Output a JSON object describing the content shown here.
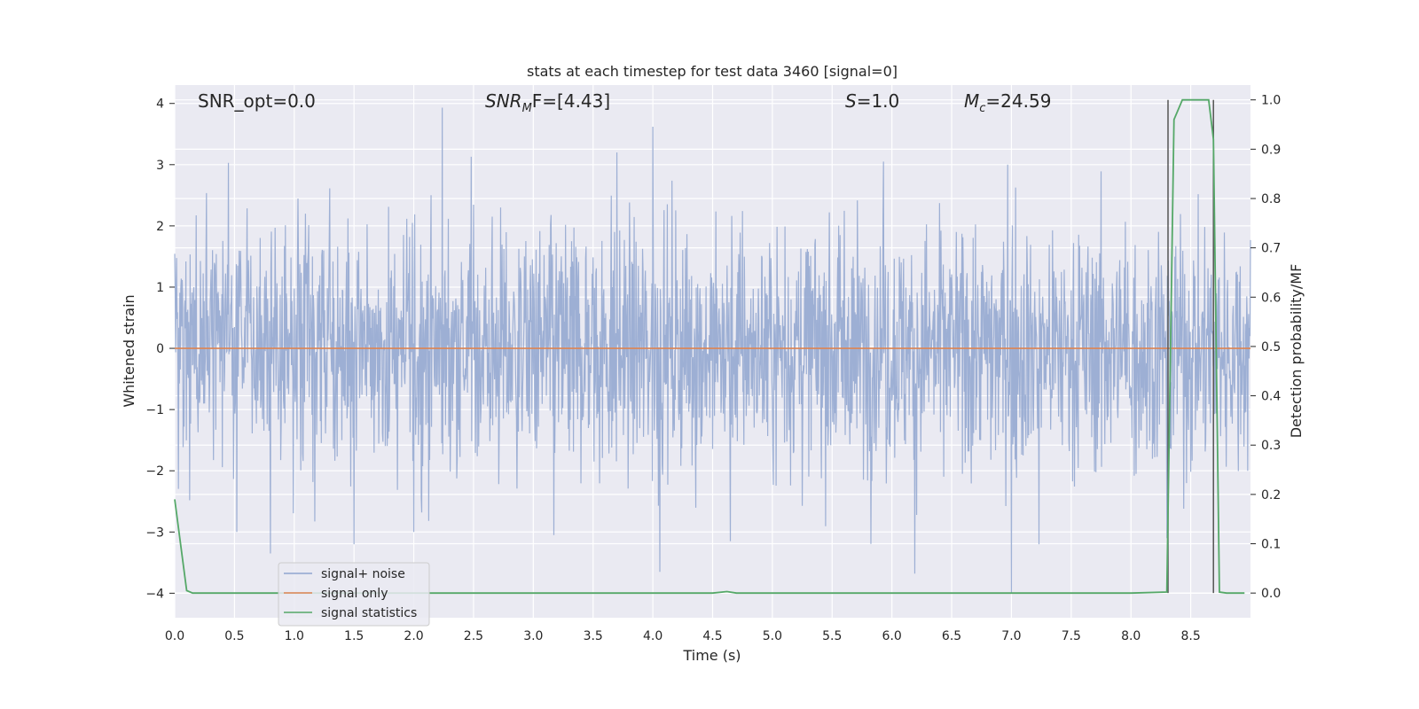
{
  "chart_data": {
    "type": "line",
    "title": "stats at each timestep for test data 3460 [signal=0]",
    "xlabel": "Time (s)",
    "ylabel": "Whitened strain",
    "y2label": "Detection probability/MF",
    "xlim": [
      0,
      9.0
    ],
    "ylim": [
      -4.4,
      4.3
    ],
    "y2lim": [
      -0.05,
      1.03
    ],
    "xticks": [
      "0.0",
      "0.5",
      "1.0",
      "1.5",
      "2.0",
      "2.5",
      "3.0",
      "3.5",
      "4.0",
      "4.5",
      "5.0",
      "5.5",
      "6.0",
      "6.5",
      "7.0",
      "7.5",
      "8.0",
      "8.5"
    ],
    "yticks": [
      "4",
      "3",
      "2",
      "1",
      "0",
      "−1",
      "−2",
      "−3",
      "−4"
    ],
    "y2ticks": [
      "1.0",
      "0.9",
      "0.8",
      "0.7",
      "0.6",
      "0.5",
      "0.4",
      "0.3",
      "0.2",
      "0.1",
      "0.0"
    ],
    "grid": true,
    "legend_placement": "lower-left",
    "annotations": {
      "snr_opt": "SNR_opt=0.0",
      "snr_mf_base": "SNR",
      "snr_mf_sub": "M",
      "snr_mf_tail": "F=[4.43]",
      "s_var": "S",
      "s_val": "=1.0",
      "mc_var": "M",
      "mc_sub": "c",
      "mc_val": "=24.59"
    },
    "vlines": [
      8.31,
      8.69
    ],
    "series": [
      {
        "name": "signal+ noise",
        "color": "#8fa4cf",
        "kind": "noise",
        "sample_rate": 256,
        "envelope": {
          "typical_amplitude": 1.0,
          "max": 3.93,
          "min": -4.0
        },
        "notable_peaks": [
          [
            2.24,
            3.93
          ],
          [
            4.0,
            3.62
          ],
          [
            3.7,
            3.2
          ],
          [
            2.48,
            3.13
          ],
          [
            0.45,
            3.03
          ],
          [
            5.93,
            3.05
          ],
          [
            6.97,
            3.0
          ],
          [
            7.0,
            -4.0
          ],
          [
            4.06,
            -3.65
          ],
          [
            6.19,
            -3.68
          ],
          [
            0.8,
            -3.35
          ],
          [
            1.5,
            -3.2
          ],
          [
            4.65,
            -3.15
          ],
          [
            8.3,
            -3.1
          ],
          [
            0.52,
            -3.0
          ],
          [
            2.0,
            -3.0
          ],
          [
            3.17,
            -3.05
          ],
          [
            7.23,
            -3.2
          ]
        ]
      },
      {
        "name": "signal only",
        "color": "#dd8452",
        "x": [
          0,
          9.0
        ],
        "y": [
          0,
          0
        ]
      },
      {
        "name": "signal statistics",
        "color": "#55a868",
        "axis": "right",
        "x": [
          0.0,
          0.1,
          0.15,
          0.2,
          1.0,
          2.0,
          3.0,
          4.0,
          4.5,
          4.62,
          4.7,
          5.0,
          6.0,
          7.0,
          8.0,
          8.3,
          8.36,
          8.43,
          8.5,
          8.55,
          8.6,
          8.65,
          8.69,
          8.74,
          8.8,
          8.95
        ],
        "y": [
          0.19,
          0.005,
          0.0,
          0.0,
          0.0,
          0.0,
          0.0,
          0.0,
          0.0,
          0.003,
          0.0,
          0.0,
          0.0,
          0.0,
          0.0,
          0.002,
          0.96,
          1.0,
          1.0,
          1.0,
          1.0,
          1.0,
          0.92,
          0.002,
          0.0,
          0.0
        ]
      }
    ]
  }
}
